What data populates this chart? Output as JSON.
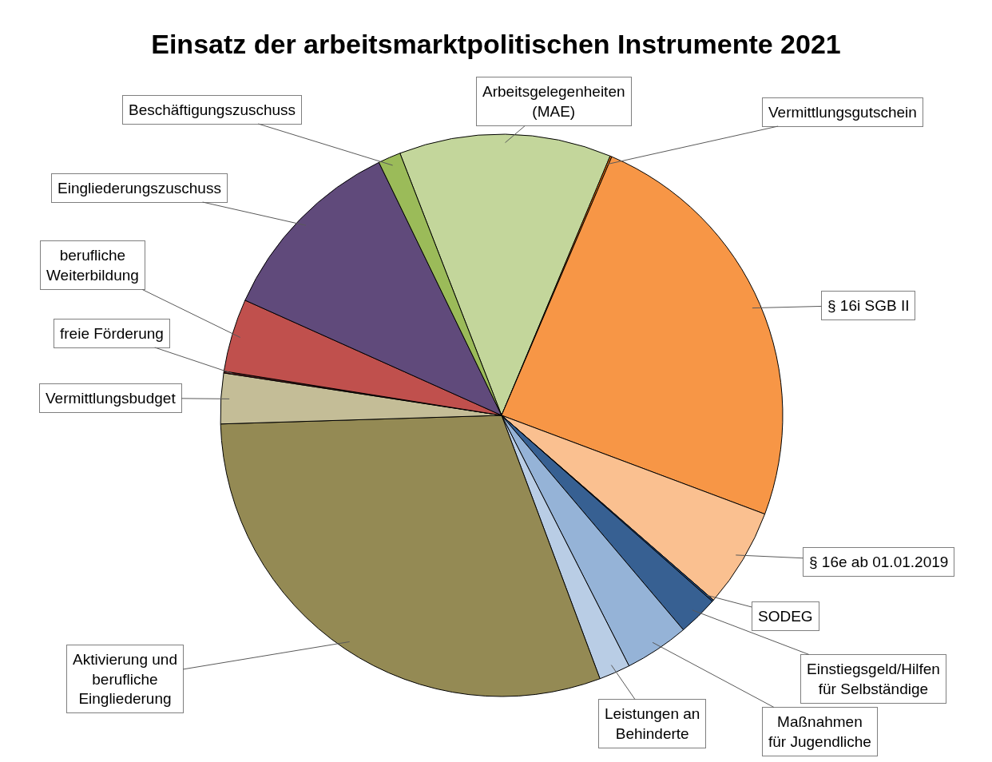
{
  "chart_data": {
    "type": "pie",
    "title": "Einsatz der arbeitsmarktpolitischen Instrumente 2021",
    "categories": [
      "Arbeitsgelegenheiten (MAE)",
      "Vermittlungsgutschein",
      "§ 16i SGB II",
      "§ 16e ab 01.01.2019",
      "SODEG",
      "Einstiegsgeld/Hilfen für Selbständige",
      "Maßnahmen für Jugendliche",
      "Leistungen an Behinderte",
      "Aktivierung und berufliche Eingliederung",
      "Vermittlungsbudget",
      "freie Förderung",
      "berufliche Weiterbildung",
      "Eingliederungszuschuss",
      "Beschäftigungszuschuss"
    ],
    "values": [
      12.2,
      0.1,
      24.3,
      5.7,
      0.1,
      2.3,
      3.7,
      1.8,
      30.2,
      2.9,
      0.1,
      4.2,
      11.1,
      1.3
    ],
    "colors": [
      "#c3d69b",
      "#e46c0a",
      "#f79646",
      "#fac090",
      "#1f497d",
      "#376092",
      "#95b3d7",
      "#b9cde5",
      "#948a54",
      "#c4bd97",
      "#632523",
      "#c0504d",
      "#604a7b",
      "#9bbb59"
    ]
  }
}
